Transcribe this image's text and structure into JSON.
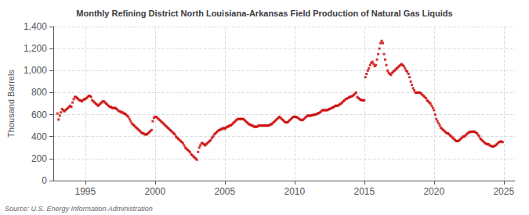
{
  "chart_data": {
    "type": "scatter",
    "title": "Monthly Refining District North Louisiana-Arkansas Field Production of Natural Gas Liquids",
    "ylabel": "Thousand Barrels",
    "annotations": [
      "Source: U.S. Energy Information Administration"
    ],
    "color": "#cc0000",
    "marker": "square",
    "grid": true,
    "ylim": [
      0,
      1400
    ],
    "yticks": [
      0,
      200,
      400,
      600,
      800,
      {
        "value": 1000,
        "label": "1,000"
      },
      {
        "value": 1200,
        "label": "1,200"
      },
      {
        "value": 1400,
        "label": "1,400"
      }
    ],
    "xlim": [
      1992.7,
      2025.8
    ],
    "xticks": [
      1995,
      2000,
      2005,
      2010,
      2015,
      2020,
      2025
    ],
    "x": [
      1993.0,
      1993.083,
      1993.167,
      1993.25,
      1993.333,
      1993.417,
      1993.5,
      1993.583,
      1993.667,
      1993.75,
      1993.833,
      1993.917,
      1994.0,
      1994.083,
      1994.167,
      1994.25,
      1994.333,
      1994.417,
      1994.5,
      1994.583,
      1994.667,
      1994.75,
      1994.833,
      1994.917,
      1995.0,
      1995.083,
      1995.167,
      1995.25,
      1995.333,
      1995.417,
      1995.5,
      1995.583,
      1995.667,
      1995.75,
      1995.833,
      1995.917,
      1996.0,
      1996.083,
      1996.167,
      1996.25,
      1996.333,
      1996.417,
      1996.5,
      1996.583,
      1996.667,
      1996.75,
      1996.833,
      1996.917,
      1997.0,
      1997.083,
      1997.167,
      1997.25,
      1997.333,
      1997.417,
      1997.5,
      1997.583,
      1997.667,
      1997.75,
      1997.833,
      1997.917,
      1998.0,
      1998.083,
      1998.167,
      1998.25,
      1998.333,
      1998.417,
      1998.5,
      1998.583,
      1998.667,
      1998.75,
      1998.833,
      1998.917,
      1999.0,
      1999.083,
      1999.167,
      1999.25,
      1999.333,
      1999.417,
      1999.5,
      1999.583,
      1999.667,
      1999.75,
      1999.833,
      1999.917,
      2000.0,
      2000.083,
      2000.167,
      2000.25,
      2000.333,
      2000.417,
      2000.5,
      2000.583,
      2000.667,
      2000.75,
      2000.833,
      2000.917,
      2001.0,
      2001.083,
      2001.167,
      2001.25,
      2001.333,
      2001.417,
      2001.5,
      2001.583,
      2001.667,
      2001.75,
      2001.833,
      2001.917,
      2002.0,
      2002.083,
      2002.167,
      2002.25,
      2002.333,
      2002.417,
      2002.5,
      2002.583,
      2002.667,
      2002.75,
      2002.833,
      2002.917,
      2003.0,
      2003.083,
      2003.167,
      2003.25,
      2003.333,
      2003.417,
      2003.5,
      2003.583,
      2003.667,
      2003.75,
      2003.833,
      2003.917,
      2004.0,
      2004.083,
      2004.167,
      2004.25,
      2004.333,
      2004.417,
      2004.5,
      2004.583,
      2004.667,
      2004.75,
      2004.833,
      2004.917,
      2005.0,
      2005.083,
      2005.167,
      2005.25,
      2005.333,
      2005.417,
      2005.5,
      2005.583,
      2005.667,
      2005.75,
      2005.833,
      2005.917,
      2006.0,
      2006.083,
      2006.167,
      2006.25,
      2006.333,
      2006.417,
      2006.5,
      2006.583,
      2006.667,
      2006.75,
      2006.833,
      2006.917,
      2007.0,
      2007.083,
      2007.167,
      2007.25,
      2007.333,
      2007.417,
      2007.5,
      2007.583,
      2007.667,
      2007.75,
      2007.833,
      2007.917,
      2008.0,
      2008.083,
      2008.167,
      2008.25,
      2008.333,
      2008.417,
      2008.5,
      2008.583,
      2008.667,
      2008.75,
      2008.833,
      2008.917,
      2009.0,
      2009.083,
      2009.167,
      2009.25,
      2009.333,
      2009.417,
      2009.5,
      2009.583,
      2009.667,
      2009.75,
      2009.833,
      2009.917,
      2010.0,
      2010.083,
      2010.167,
      2010.25,
      2010.333,
      2010.417,
      2010.5,
      2010.583,
      2010.667,
      2010.75,
      2010.833,
      2010.917,
      2011.0,
      2011.083,
      2011.167,
      2011.25,
      2011.333,
      2011.417,
      2011.5,
      2011.583,
      2011.667,
      2011.75,
      2011.833,
      2011.917,
      2012.0,
      2012.083,
      2012.167,
      2012.25,
      2012.333,
      2012.417,
      2012.5,
      2012.583,
      2012.667,
      2012.75,
      2012.833,
      2012.917,
      2013.0,
      2013.083,
      2013.167,
      2013.25,
      2013.333,
      2013.417,
      2013.5,
      2013.583,
      2013.667,
      2013.75,
      2013.833,
      2013.917,
      2014.0,
      2014.083,
      2014.167,
      2014.25,
      2014.333,
      2014.417,
      2014.5,
      2014.583,
      2014.667,
      2014.75,
      2014.833,
      2014.917,
      2015.0,
      2015.083,
      2015.167,
      2015.25,
      2015.333,
      2015.417,
      2015.5,
      2015.583,
      2015.667,
      2015.75,
      2015.833,
      2015.917,
      2016.0,
      2016.083,
      2016.167,
      2016.25,
      2016.333,
      2016.417,
      2016.5,
      2016.583,
      2016.667,
      2016.75,
      2016.833,
      2016.917,
      2017.0,
      2017.083,
      2017.167,
      2017.25,
      2017.333,
      2017.417,
      2017.5,
      2017.583,
      2017.667,
      2017.75,
      2017.833,
      2017.917,
      2018.0,
      2018.083,
      2018.167,
      2018.25,
      2018.333,
      2018.417,
      2018.5,
      2018.583,
      2018.667,
      2018.75,
      2018.833,
      2018.917,
      2019.0,
      2019.083,
      2019.167,
      2019.25,
      2019.333,
      2019.417,
      2019.5,
      2019.583,
      2019.667,
      2019.75,
      2019.833,
      2019.917,
      2020.0,
      2020.083,
      2020.167,
      2020.25,
      2020.333,
      2020.417,
      2020.5,
      2020.583,
      2020.667,
      2020.75,
      2020.833,
      2020.917,
      2021.0,
      2021.083,
      2021.167,
      2021.25,
      2021.333,
      2021.417,
      2021.5,
      2021.583,
      2021.667,
      2021.75,
      2021.833,
      2021.917,
      2022.0,
      2022.083,
      2022.167,
      2022.25,
      2022.333,
      2022.417,
      2022.5,
      2022.583,
      2022.667,
      2022.75,
      2022.833,
      2022.917,
      2023.0,
      2023.083,
      2023.167,
      2023.25,
      2023.333,
      2023.417,
      2023.5,
      2023.583,
      2023.667,
      2023.75,
      2023.833,
      2023.917,
      2024.0,
      2024.083,
      2024.167,
      2024.25,
      2024.333,
      2024.417,
      2024.5,
      2024.583,
      2024.667,
      2024.75,
      2024.833,
      2024.917
    ],
    "values": [
      610,
      555,
      590,
      620,
      650,
      640,
      630,
      640,
      650,
      660,
      670,
      680,
      670,
      710,
      740,
      760,
      760,
      750,
      740,
      730,
      730,
      720,
      730,
      740,
      740,
      750,
      760,
      770,
      770,
      760,
      730,
      720,
      710,
      700,
      690,
      680,
      690,
      700,
      710,
      720,
      720,
      710,
      700,
      690,
      680,
      670,
      670,
      660,
      660,
      660,
      660,
      650,
      640,
      630,
      630,
      620,
      620,
      610,
      610,
      600,
      590,
      580,
      560,
      540,
      520,
      510,
      500,
      490,
      480,
      470,
      460,
      450,
      440,
      430,
      430,
      420,
      420,
      420,
      430,
      440,
      450,
      460,
      540,
      570,
      580,
      580,
      570,
      560,
      550,
      540,
      530,
      520,
      510,
      500,
      490,
      480,
      470,
      460,
      450,
      440,
      430,
      420,
      400,
      390,
      380,
      370,
      360,
      350,
      340,
      320,
      300,
      290,
      280,
      270,
      260,
      240,
      230,
      220,
      210,
      200,
      190,
      260,
      300,
      320,
      340,
      340,
      330,
      320,
      330,
      340,
      350,
      360,
      370,
      390,
      400,
      420,
      430,
      440,
      450,
      460,
      460,
      470,
      470,
      480,
      470,
      480,
      490,
      490,
      500,
      500,
      510,
      520,
      530,
      540,
      550,
      560,
      560,
      560,
      560,
      560,
      560,
      550,
      540,
      530,
      520,
      510,
      510,
      500,
      500,
      490,
      490,
      490,
      490,
      500,
      500,
      500,
      500,
      500,
      500,
      500,
      500,
      500,
      500,
      510,
      510,
      520,
      530,
      540,
      550,
      560,
      570,
      580,
      570,
      560,
      550,
      540,
      530,
      530,
      530,
      540,
      550,
      560,
      570,
      580,
      580,
      580,
      575,
      570,
      560,
      555,
      550,
      550,
      560,
      570,
      580,
      590,
      590,
      590,
      590,
      595,
      595,
      600,
      600,
      605,
      610,
      615,
      620,
      630,
      640,
      640,
      640,
      640,
      640,
      645,
      650,
      655,
      660,
      665,
      670,
      680,
      680,
      680,
      685,
      695,
      700,
      710,
      720,
      730,
      740,
      745,
      750,
      760,
      760,
      765,
      770,
      780,
      790,
      800,
      760,
      750,
      740,
      735,
      730,
      730,
      730,
      940,
      970,
      1000,
      1020,
      1050,
      1070,
      1080,
      1060,
      1040,
      1050,
      1100,
      1150,
      1200,
      1250,
      1270,
      1250,
      1150,
      1100,
      1050,
      1000,
      980,
      970,
      960,
      980,
      990,
      1000,
      1010,
      1020,
      1030,
      1040,
      1050,
      1060,
      1050,
      1040,
      1020,
      1000,
      990,
      970,
      940,
      900,
      870,
      840,
      820,
      800,
      800,
      800,
      800,
      800,
      790,
      780,
      770,
      760,
      750,
      730,
      720,
      710,
      700,
      680,
      660,
      640,
      600,
      560,
      540,
      520,
      500,
      480,
      470,
      460,
      450,
      440,
      430,
      430,
      420,
      410,
      400,
      390,
      380,
      370,
      360,
      360,
      360,
      370,
      380,
      390,
      400,
      400,
      410,
      420,
      430,
      440,
      440,
      445,
      445,
      445,
      445,
      435,
      430,
      415,
      400,
      380,
      370,
      360,
      350,
      340,
      335,
      330,
      330,
      320,
      315,
      310,
      310,
      315,
      320,
      330,
      340,
      350,
      355,
      355,
      350
    ]
  }
}
